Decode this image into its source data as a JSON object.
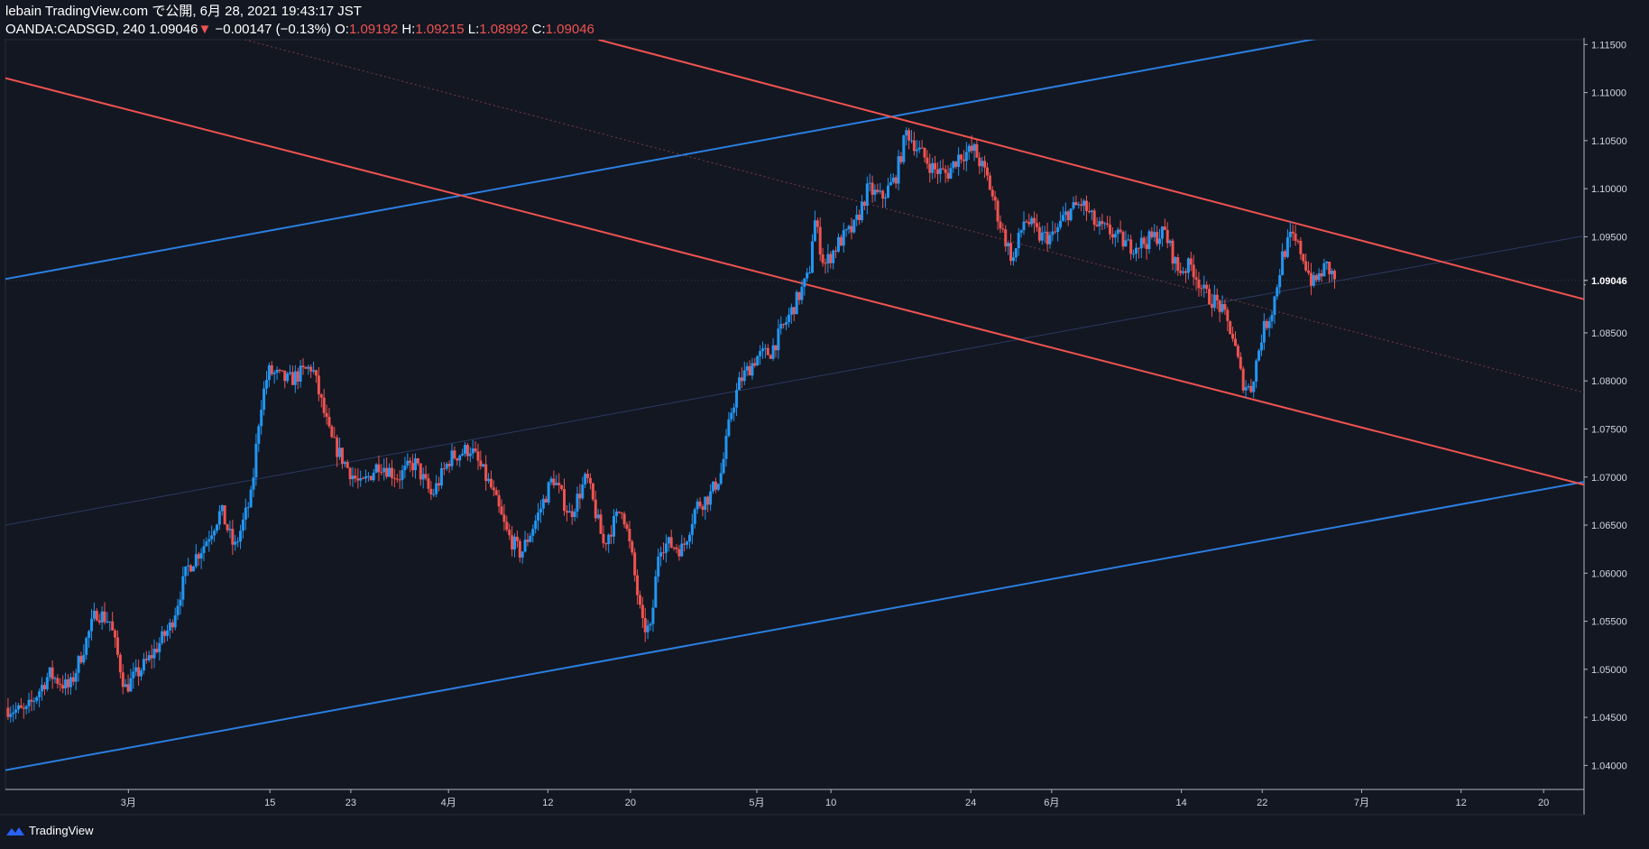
{
  "header": {
    "line1": "lebain TradingView.com で公開, 6月 28, 2021 19:43:17 JST",
    "symbol": "OANDA:CADSGD, 240",
    "last": "1.09046",
    "arrow": "▼",
    "change": "−0.00147 (−0.13%)",
    "o_label": "O:",
    "o_val": "1.09192",
    "h_label": "H:",
    "h_val": "1.09215",
    "l_label": "L:",
    "l_val": "1.08992",
    "c_label": "C:",
    "c_val": "1.09046"
  },
  "brand": "TradingView",
  "colors": {
    "bg": "#131722",
    "up": "#2196f3",
    "down": "#ef5350",
    "channelUp": "#2b7fe0",
    "channelDown": "#ef5350",
    "axis": "#b2b5be"
  },
  "chart_data": {
    "type": "candlestick",
    "ylim": [
      1.0375,
      1.1155
    ],
    "yticks": [
      "1.11500",
      "1.11000",
      "1.10500",
      "1.10000",
      "1.09500",
      "1.09000",
      "1.08500",
      "1.08000",
      "1.07500",
      "1.07000",
      "1.06500",
      "1.06000",
      "1.05500",
      "1.05000",
      "1.04500",
      "1.04000"
    ],
    "last_price_label": "1.09046",
    "last_price": 1.09046,
    "xticks": [
      {
        "label": "3月",
        "x": 7.3
      },
      {
        "label": "15",
        "x": 15.7
      },
      {
        "label": "23",
        "x": 20.5
      },
      {
        "label": "4月",
        "x": 26.3
      },
      {
        "label": "12",
        "x": 32.2
      },
      {
        "label": "20",
        "x": 37.1
      },
      {
        "label": "5月",
        "x": 44.6
      },
      {
        "label": "10",
        "x": 49.0
      },
      {
        "label": "24",
        "x": 57.3
      },
      {
        "label": "6月",
        "x": 62.1
      },
      {
        "label": "14",
        "x": 69.8
      },
      {
        "label": "22",
        "x": 74.6
      },
      {
        "label": "7月",
        "x": 80.5
      },
      {
        "label": "12",
        "x": 86.4
      },
      {
        "label": "20",
        "x": 91.3
      }
    ],
    "xlim": [
      0,
      93.7
    ],
    "anchors": [
      [
        0,
        1.046
      ],
      [
        1.2,
        1.0455
      ],
      [
        2.6,
        1.0495
      ],
      [
        3.8,
        1.048
      ],
      [
        5.4,
        1.056
      ],
      [
        6.2,
        1.055
      ],
      [
        7.1,
        1.048
      ],
      [
        8.5,
        1.051
      ],
      [
        9.8,
        1.0545
      ],
      [
        10.8,
        1.0605
      ],
      [
        11.8,
        1.063
      ],
      [
        12.8,
        1.0665
      ],
      [
        13.6,
        1.0625
      ],
      [
        14.6,
        1.068
      ],
      [
        15.1,
        1.077
      ],
      [
        15.6,
        1.081
      ],
      [
        16.8,
        1.08
      ],
      [
        18.2,
        1.0815
      ],
      [
        19.3,
        1.074
      ],
      [
        20.3,
        1.071
      ],
      [
        21.1,
        1.069
      ],
      [
        22.2,
        1.0715
      ],
      [
        23.3,
        1.07
      ],
      [
        24.3,
        1.0715
      ],
      [
        25.3,
        1.068
      ],
      [
        26.4,
        1.072
      ],
      [
        27.6,
        1.073
      ],
      [
        28.8,
        1.069
      ],
      [
        29.8,
        1.064
      ],
      [
        30.6,
        1.062
      ],
      [
        31.6,
        1.066
      ],
      [
        32.5,
        1.07
      ],
      [
        33.5,
        1.066
      ],
      [
        34.5,
        1.07
      ],
      [
        35.5,
        1.063
      ],
      [
        36.6,
        1.067
      ],
      [
        37.2,
        1.0615
      ],
      [
        37.8,
        1.0545
      ],
      [
        38.3,
        1.054
      ],
      [
        38.8,
        1.063
      ],
      [
        39.4,
        1.063
      ],
      [
        40.2,
        1.0625
      ],
      [
        41.0,
        1.067
      ],
      [
        41.8,
        1.068
      ],
      [
        42.5,
        1.0705
      ],
      [
        43.1,
        1.077
      ],
      [
        43.6,
        1.08
      ],
      [
        44.6,
        1.0825
      ],
      [
        45.4,
        1.083
      ],
      [
        46.3,
        1.086
      ],
      [
        47.0,
        1.0885
      ],
      [
        47.7,
        1.091
      ],
      [
        48.0,
        1.097
      ],
      [
        48.6,
        1.092
      ],
      [
        49.5,
        1.0945
      ],
      [
        50.4,
        1.096
      ],
      [
        51.2,
        1.1
      ],
      [
        52.0,
        1.099
      ],
      [
        52.8,
        1.101
      ],
      [
        53.5,
        1.106
      ],
      [
        54.2,
        1.104
      ],
      [
        55.1,
        1.102
      ],
      [
        55.9,
        1.1015
      ],
      [
        56.6,
        1.1035
      ],
      [
        57.5,
        1.104
      ],
      [
        58.3,
        1.101
      ],
      [
        59.1,
        1.096
      ],
      [
        59.8,
        1.0925
      ],
      [
        60.5,
        1.097
      ],
      [
        61.4,
        1.095
      ],
      [
        62.2,
        1.095
      ],
      [
        63.0,
        1.0975
      ],
      [
        63.9,
        1.0985
      ],
      [
        64.8,
        1.096
      ],
      [
        65.6,
        1.0955
      ],
      [
        66.7,
        1.094
      ],
      [
        67.7,
        1.0945
      ],
      [
        68.8,
        1.0955
      ],
      [
        69.6,
        1.0915
      ],
      [
        70.4,
        1.092
      ],
      [
        71.2,
        1.089
      ],
      [
        72.0,
        1.088
      ],
      [
        72.8,
        1.085
      ],
      [
        73.4,
        1.08
      ],
      [
        73.9,
        1.079
      ],
      [
        74.6,
        1.085
      ],
      [
        75.2,
        1.0875
      ],
      [
        75.8,
        1.093
      ],
      [
        76.3,
        1.095
      ],
      [
        76.9,
        1.0935
      ],
      [
        77.6,
        1.09
      ],
      [
        78.4,
        1.092
      ],
      [
        79.0,
        1.0904
      ]
    ],
    "lines": [
      {
        "name": "blue-channel-upper",
        "color": "#2b7fe0",
        "p1": [
          0,
          1.0906
        ],
        "p2": [
          93.7,
          1.1207
        ],
        "style": "solid"
      },
      {
        "name": "blue-channel-lower",
        "color": "#2b7fe0",
        "p1": [
          0,
          1.0395
        ],
        "p2": [
          93.7,
          1.0695
        ],
        "style": "solid"
      },
      {
        "name": "blue-channel-mid",
        "color": "#2a3a5e",
        "p1": [
          0,
          1.065
        ],
        "p2": [
          93.7,
          1.0951
        ],
        "style": "solid"
      },
      {
        "name": "red-channel-upper",
        "color": "#ef5350",
        "p1": [
          35.2,
          1.1155
        ],
        "p2": [
          93.7,
          1.0885
        ],
        "style": "solid"
      },
      {
        "name": "red-channel-lower",
        "color": "#ef5350",
        "p1": [
          0,
          1.1115
        ],
        "p2": [
          93.7,
          1.0692
        ],
        "style": "solid"
      },
      {
        "name": "red-channel-mid",
        "color": "#7a3b44",
        "p1": [
          14.2,
          1.1155
        ],
        "p2": [
          93.7,
          1.0788
        ],
        "style": "dotted"
      }
    ]
  }
}
